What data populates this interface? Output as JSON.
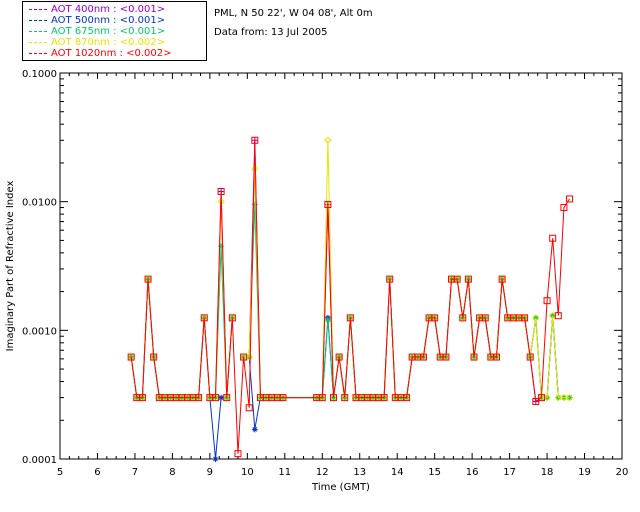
{
  "header": {
    "site": "PML, N 50 22', W 04 08', Alt 0m",
    "date": "Data from: 13 Jul 2005"
  },
  "legend": [
    {
      "label": "AOT  400nm : <0.001>",
      "color": "#9900cc"
    },
    {
      "label": "AOT  500nm : <0.001>",
      "color": "#0033cc"
    },
    {
      "label": "AOT  675nm : <0.001>",
      "color": "#00cc66"
    },
    {
      "label": "AOT  870nm : <0.002>",
      "color": "#e6e600"
    },
    {
      "label": "AOT 1020nm : <0.002>",
      "color": "#ff0000"
    }
  ],
  "chart_data": {
    "type": "line",
    "title": "",
    "xlabel": "Time (GMT)",
    "ylabel": "Imaginary Part of Refractive Index",
    "xlim": [
      5,
      20
    ],
    "ylim": [
      0.0001,
      0.1
    ],
    "yscale": "log",
    "xticks": [
      "5",
      "6",
      "7",
      "8",
      "9",
      "10",
      "11",
      "12",
      "13",
      "14",
      "15",
      "16",
      "17",
      "18",
      "19",
      "20"
    ],
    "yticks": [
      {
        "value": 0.0001,
        "label": "0.0001"
      },
      {
        "value": 0.001,
        "label": "0.0010"
      },
      {
        "value": 0.01,
        "label": "0.0100"
      },
      {
        "value": 0.1,
        "label": "0.1000"
      }
    ],
    "x": [
      6.9,
      7.05,
      7.2,
      7.35,
      7.5,
      7.65,
      7.8,
      7.95,
      8.1,
      8.25,
      8.4,
      8.55,
      8.7,
      8.85,
      9.0,
      9.15,
      9.3,
      9.45,
      9.6,
      9.75,
      9.9,
      10.05,
      10.2,
      10.35,
      10.5,
      10.65,
      10.8,
      10.95,
      11.85,
      12.0,
      12.15,
      12.3,
      12.45,
      12.6,
      12.75,
      12.9,
      13.05,
      13.2,
      13.35,
      13.5,
      13.65,
      13.8,
      13.95,
      14.1,
      14.25,
      14.4,
      14.55,
      14.7,
      14.85,
      15.0,
      15.15,
      15.3,
      15.45,
      15.6,
      15.75,
      15.9,
      16.05,
      16.2,
      16.35,
      16.5,
      16.65,
      16.8,
      16.95,
      17.1,
      17.25,
      17.4,
      17.55,
      17.7,
      17.85,
      18.0,
      18.15,
      18.3,
      18.45,
      18.6
    ],
    "series": [
      {
        "name": "AOT 400nm",
        "values": [
          0.00062,
          0.0003,
          0.0003,
          0.0025,
          0.00062,
          0.0003,
          0.0003,
          0.0003,
          0.0003,
          0.0003,
          0.0003,
          0.0003,
          0.0003,
          0.00125,
          0.0003,
          0.0003,
          0.012,
          0.0003,
          0.00125,
          null,
          0.00062,
          0.00062,
          0.03,
          0.0003,
          0.0003,
          0.0003,
          0.0003,
          0.0003,
          0.0003,
          0.0003,
          0.0095,
          0.0003,
          0.00062,
          0.0003,
          0.00125,
          0.0003,
          0.0003,
          0.0003,
          0.0003,
          0.0003,
          0.0003,
          0.0025,
          0.0003,
          0.0003,
          0.0003,
          0.00062,
          0.00062,
          0.00062,
          0.00125,
          0.00125,
          0.00062,
          0.00062,
          0.0025,
          0.0025,
          0.00125,
          0.0025,
          0.00062,
          0.00125,
          0.00125,
          0.00062,
          0.00062,
          0.0025,
          0.00125,
          0.00125,
          0.00125,
          0.00125,
          0.00062,
          0.00028,
          0.0003,
          0.0003,
          0.0013,
          0.0003,
          0.0003,
          0.0003
        ]
      },
      {
        "name": "AOT 500nm",
        "values": [
          0.00062,
          0.0003,
          0.0003,
          0.0025,
          0.00062,
          0.0003,
          0.0003,
          0.0003,
          0.0003,
          0.0003,
          0.0003,
          0.0003,
          0.0003,
          0.00125,
          0.0003,
          0.0001,
          0.0003,
          0.0003,
          0.00125,
          null,
          0.00062,
          0.00062,
          0.00017,
          0.0003,
          0.0003,
          0.0003,
          0.0003,
          0.0003,
          0.0003,
          0.0003,
          0.00125,
          0.0003,
          0.00062,
          0.0003,
          0.00125,
          0.0003,
          0.0003,
          0.0003,
          0.0003,
          0.0003,
          0.0003,
          0.0025,
          0.0003,
          0.0003,
          0.0003,
          0.00062,
          0.00062,
          0.00062,
          0.00125,
          0.00125,
          0.00062,
          0.00062,
          0.0025,
          0.0025,
          0.00125,
          0.0025,
          0.00062,
          0.00125,
          0.00125,
          0.00062,
          0.00062,
          0.0025,
          0.00125,
          0.00125,
          0.00125,
          0.00125,
          0.00062,
          0.00125,
          0.0003,
          0.0003,
          0.0013,
          0.0003,
          0.0003,
          0.0003
        ]
      },
      {
        "name": "AOT 675nm",
        "values": [
          0.00062,
          0.0003,
          0.0003,
          0.0025,
          0.00062,
          0.0003,
          0.0003,
          0.0003,
          0.0003,
          0.0003,
          0.0003,
          0.0003,
          0.0003,
          0.00125,
          0.0003,
          0.0003,
          0.0045,
          0.0003,
          0.00125,
          null,
          0.00062,
          0.00062,
          0.0095,
          0.0003,
          0.0003,
          0.0003,
          0.0003,
          0.0003,
          0.0003,
          0.0003,
          0.0012,
          0.0003,
          0.00062,
          0.0003,
          0.00125,
          0.0003,
          0.0003,
          0.0003,
          0.0003,
          0.0003,
          0.0003,
          0.0025,
          0.0003,
          0.0003,
          0.0003,
          0.00062,
          0.00062,
          0.00062,
          0.00125,
          0.00125,
          0.00062,
          0.00062,
          0.0025,
          0.0025,
          0.00125,
          0.0025,
          0.00062,
          0.00125,
          0.00125,
          0.00062,
          0.00062,
          0.0025,
          0.00125,
          0.00125,
          0.00125,
          0.00125,
          0.00062,
          0.00125,
          0.0003,
          0.0003,
          0.0013,
          0.0003,
          0.0003,
          0.0003
        ]
      },
      {
        "name": "AOT 870nm",
        "values": [
          0.00062,
          0.0003,
          0.0003,
          0.0025,
          0.00062,
          0.0003,
          0.0003,
          0.0003,
          0.0003,
          0.0003,
          0.0003,
          0.0003,
          0.0003,
          0.00125,
          0.0003,
          0.0003,
          0.01,
          0.0003,
          0.00125,
          null,
          0.00062,
          0.00062,
          0.018,
          0.0003,
          0.0003,
          0.0003,
          0.0003,
          0.0003,
          0.0003,
          0.0003,
          0.03,
          0.0003,
          0.00062,
          0.0003,
          0.00125,
          0.0003,
          0.0003,
          0.0003,
          0.0003,
          0.0003,
          0.0003,
          0.0025,
          0.0003,
          0.0003,
          0.0003,
          0.00062,
          0.00062,
          0.00062,
          0.00125,
          0.00125,
          0.00062,
          0.00062,
          0.0025,
          0.0025,
          0.00125,
          0.0025,
          0.00062,
          0.00125,
          0.00125,
          0.00062,
          0.00062,
          0.0025,
          0.00125,
          0.00125,
          0.00125,
          0.00125,
          0.00062,
          0.00125,
          0.0003,
          0.0003,
          0.0013,
          0.0003,
          0.0003,
          0.0003
        ]
      },
      {
        "name": "AOT 1020nm",
        "values": [
          0.00062,
          0.0003,
          0.0003,
          0.0025,
          0.00062,
          0.0003,
          0.0003,
          0.0003,
          0.0003,
          0.0003,
          0.0003,
          0.0003,
          0.0003,
          0.00125,
          0.0003,
          0.0003,
          0.012,
          0.0003,
          0.00125,
          0.00011,
          0.00062,
          0.00025,
          0.03,
          0.0003,
          0.0003,
          0.0003,
          0.0003,
          0.0003,
          0.0003,
          0.0003,
          0.0095,
          0.0003,
          0.00062,
          0.0003,
          0.00125,
          0.0003,
          0.0003,
          0.0003,
          0.0003,
          0.0003,
          0.0003,
          0.0025,
          0.0003,
          0.0003,
          0.0003,
          0.00062,
          0.00062,
          0.00062,
          0.00125,
          0.00125,
          0.00062,
          0.00062,
          0.0025,
          0.0025,
          0.00125,
          0.0025,
          0.00062,
          0.00125,
          0.00125,
          0.00062,
          0.00062,
          0.0025,
          0.00125,
          0.00125,
          0.00125,
          0.00125,
          0.00062,
          0.00028,
          0.0003,
          0.0017,
          0.0052,
          0.0013,
          0.009,
          0.0105
        ]
      }
    ],
    "grid": false,
    "legend_position": "top-left"
  }
}
